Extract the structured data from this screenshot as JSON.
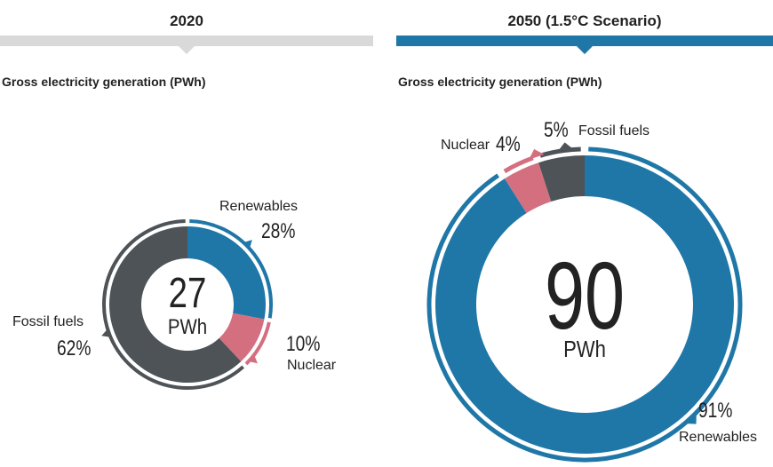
{
  "colors": {
    "renewables": "#1f77a8",
    "nuclear": "#d46f80",
    "fossil": "#4d5357",
    "bar_2020": "#d9d9d9",
    "bar_2050": "#1f77a8"
  },
  "chart_data": [
    {
      "type": "pie",
      "title": "2020",
      "subtitle": "Gross electricity generation (PWh)",
      "total_value": "27",
      "total_unit": "PWh",
      "slices": [
        {
          "label": "Renewables",
          "value": 28,
          "display": "28%"
        },
        {
          "label": "Nuclear",
          "value": 10,
          "display": "10%"
        },
        {
          "label": "Fossil fuels",
          "value": 62,
          "display": "62%"
        }
      ]
    },
    {
      "type": "pie",
      "title": "2050 (1.5°C Scenario)",
      "subtitle": "Gross electricity generation (PWh)",
      "total_value": "90",
      "total_unit": "PWh",
      "slices": [
        {
          "label": "Renewables",
          "value": 91,
          "display": "91%"
        },
        {
          "label": "Nuclear",
          "value": 4,
          "display": "4%"
        },
        {
          "label": "Fossil fuels",
          "value": 5,
          "display": "5%"
        }
      ]
    }
  ]
}
